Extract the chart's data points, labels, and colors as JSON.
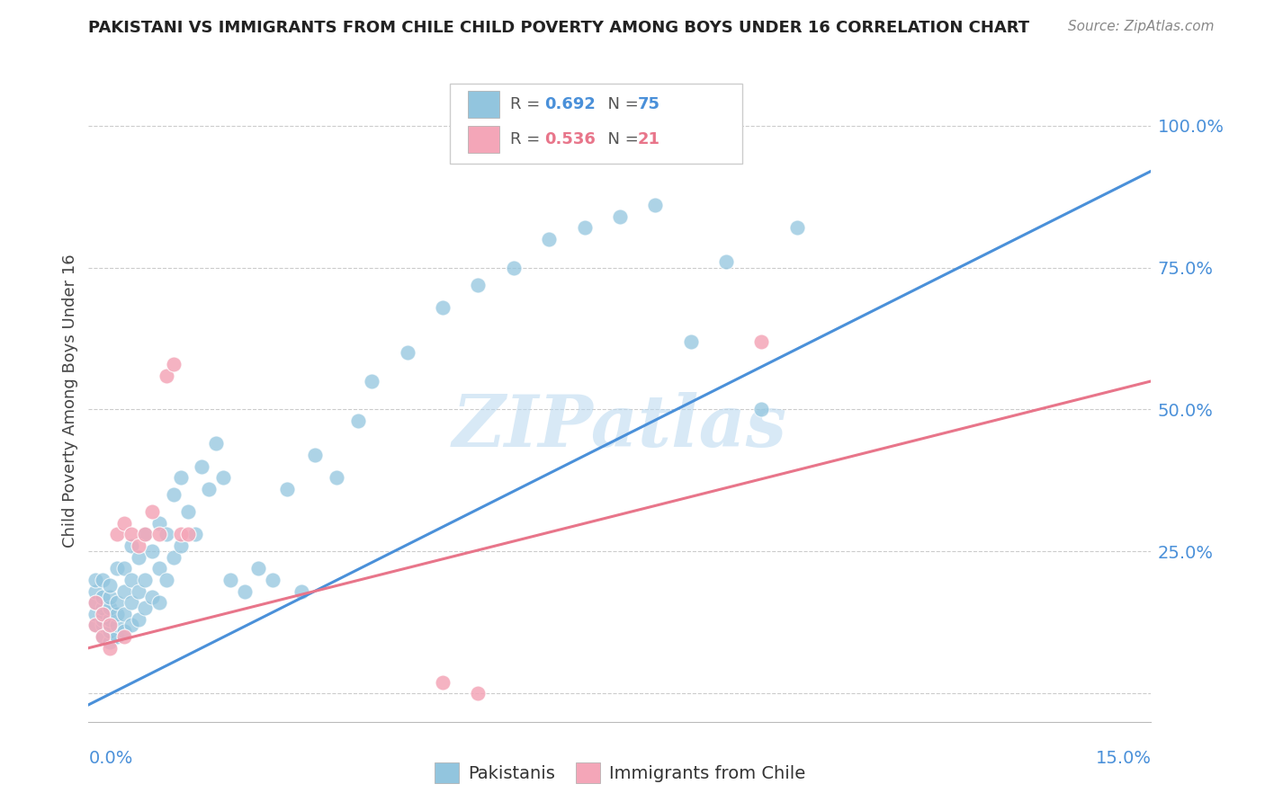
{
  "title": "PAKISTANI VS IMMIGRANTS FROM CHILE CHILD POVERTY AMONG BOYS UNDER 16 CORRELATION CHART",
  "source": "Source: ZipAtlas.com",
  "ylabel": "Child Poverty Among Boys Under 16",
  "xlim": [
    0.0,
    0.15
  ],
  "ylim": [
    -0.05,
    1.08
  ],
  "blue_color": "#92c5de",
  "pink_color": "#f4a6b8",
  "line_blue": "#4a90d9",
  "line_pink": "#e8758a",
  "watermark": "ZIPatlas",
  "blue_line_x": [
    0.0,
    0.15
  ],
  "blue_line_y": [
    -0.02,
    0.92
  ],
  "pink_line_x": [
    0.0,
    0.15
  ],
  "pink_line_y": [
    0.08,
    0.55
  ],
  "pakistanis_x": [
    0.001,
    0.001,
    0.001,
    0.001,
    0.001,
    0.002,
    0.002,
    0.002,
    0.002,
    0.002,
    0.002,
    0.003,
    0.003,
    0.003,
    0.003,
    0.003,
    0.003,
    0.004,
    0.004,
    0.004,
    0.004,
    0.004,
    0.005,
    0.005,
    0.005,
    0.005,
    0.006,
    0.006,
    0.006,
    0.006,
    0.007,
    0.007,
    0.007,
    0.008,
    0.008,
    0.008,
    0.009,
    0.009,
    0.01,
    0.01,
    0.01,
    0.011,
    0.011,
    0.012,
    0.012,
    0.013,
    0.013,
    0.014,
    0.015,
    0.016,
    0.017,
    0.018,
    0.019,
    0.02,
    0.022,
    0.024,
    0.026,
    0.028,
    0.03,
    0.032,
    0.035,
    0.038,
    0.04,
    0.045,
    0.05,
    0.055,
    0.06,
    0.065,
    0.07,
    0.075,
    0.08,
    0.085,
    0.09,
    0.095,
    0.1
  ],
  "pakistanis_y": [
    0.12,
    0.14,
    0.16,
    0.18,
    0.2,
    0.1,
    0.12,
    0.13,
    0.15,
    0.17,
    0.2,
    0.09,
    0.11,
    0.13,
    0.15,
    0.17,
    0.19,
    0.1,
    0.12,
    0.14,
    0.16,
    0.22,
    0.11,
    0.14,
    0.18,
    0.22,
    0.12,
    0.16,
    0.2,
    0.26,
    0.13,
    0.18,
    0.24,
    0.15,
    0.2,
    0.28,
    0.17,
    0.25,
    0.16,
    0.22,
    0.3,
    0.2,
    0.28,
    0.24,
    0.35,
    0.26,
    0.38,
    0.32,
    0.28,
    0.4,
    0.36,
    0.44,
    0.38,
    0.2,
    0.18,
    0.22,
    0.2,
    0.36,
    0.18,
    0.42,
    0.38,
    0.48,
    0.55,
    0.6,
    0.68,
    0.72,
    0.75,
    0.8,
    0.82,
    0.84,
    0.86,
    0.62,
    0.76,
    0.5,
    0.82
  ],
  "chile_x": [
    0.001,
    0.001,
    0.002,
    0.002,
    0.003,
    0.003,
    0.004,
    0.005,
    0.005,
    0.006,
    0.007,
    0.008,
    0.009,
    0.01,
    0.011,
    0.012,
    0.013,
    0.014,
    0.05,
    0.055,
    0.095
  ],
  "chile_y": [
    0.12,
    0.16,
    0.1,
    0.14,
    0.08,
    0.12,
    0.28,
    0.1,
    0.3,
    0.28,
    0.26,
    0.28,
    0.32,
    0.28,
    0.56,
    0.58,
    0.28,
    0.28,
    0.02,
    0.0,
    0.62
  ]
}
